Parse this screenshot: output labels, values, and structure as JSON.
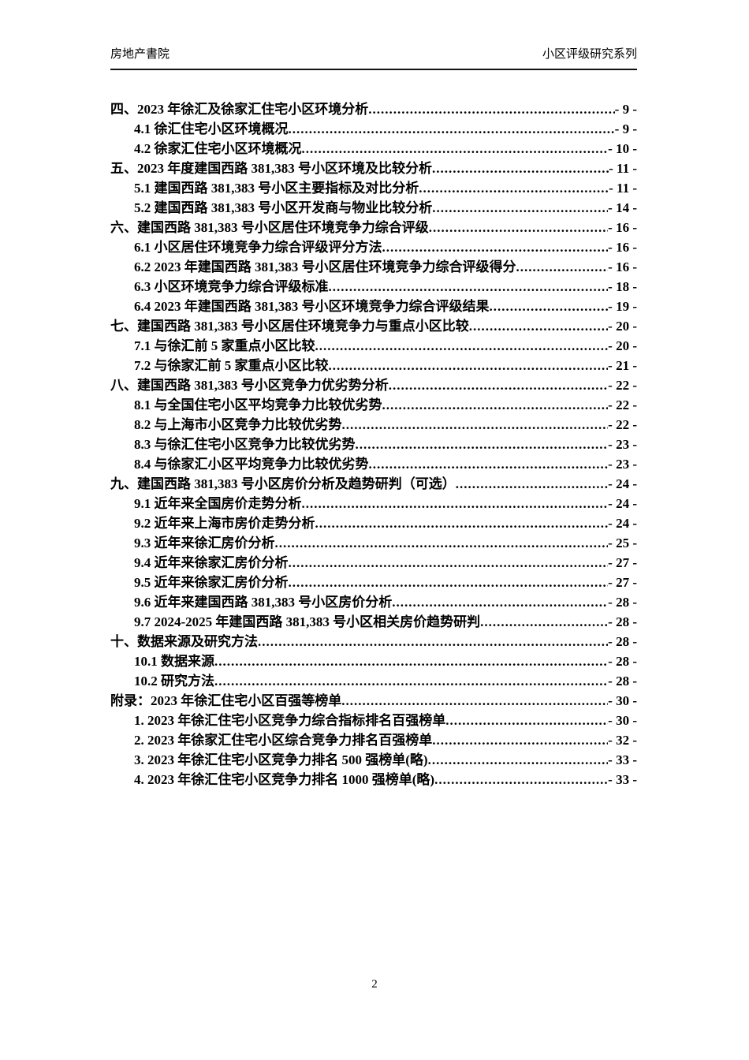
{
  "header": {
    "left_title": "房地产書院",
    "right_title": "小区评级研究系列"
  },
  "footer": {
    "page_number": "2"
  },
  "toc": {
    "items": [
      {
        "level": 0,
        "label": "四、2023 年徐汇及徐家汇住宅小区环境分析",
        "page": "- 9 -"
      },
      {
        "level": 1,
        "label": "4.1 徐汇住宅小区环境概况",
        "page": "- 9 -"
      },
      {
        "level": 1,
        "label": "4.2 徐家汇住宅小区环境概况",
        "page": "- 10 -"
      },
      {
        "level": 0,
        "label": "五、2023 年度建国西路 381,383 号小区环境及比较分析",
        "page": "- 11 -"
      },
      {
        "level": 1,
        "label": "5.1 建国西路 381,383 号小区主要指标及对比分析",
        "page": "- 11 -"
      },
      {
        "level": 1,
        "label": "5.2 建国西路 381,383 号小区开发商与物业比较分析",
        "page": "- 14 -"
      },
      {
        "level": 0,
        "label": "六、建国西路 381,383 号小区居住环境竞争力综合评级",
        "page": "- 16 -"
      },
      {
        "level": 1,
        "label": "6.1 小区居住环境竞争力综合评级评分方法",
        "page": "- 16 -"
      },
      {
        "level": 1,
        "label": "6.2 2023 年建国西路 381,383 号小区居住环境竞争力综合评级得分",
        "page": "- 16 -"
      },
      {
        "level": 1,
        "label": "6.3 小区环境竞争力综合评级标准",
        "page": "- 18 -"
      },
      {
        "level": 1,
        "label": "6.4 2023 年建国西路 381,383 号小区环境竞争力综合评级结果",
        "page": "- 19 -"
      },
      {
        "level": 0,
        "label": "七、建国西路 381,383 号小区居住环境竞争力与重点小区比较",
        "page": "- 20 -"
      },
      {
        "level": 1,
        "label": "7.1 与徐汇前 5 家重点小区比较",
        "page": "- 20 -"
      },
      {
        "level": 1,
        "label": "7.2 与徐家汇前 5 家重点小区比较",
        "page": "- 21 -"
      },
      {
        "level": 0,
        "label": "八、建国西路 381,383 号小区竞争力优劣势分析",
        "page": "- 22 -"
      },
      {
        "level": 1,
        "label": "8.1 与全国住宅小区平均竞争力比较优劣势",
        "page": "- 22 -"
      },
      {
        "level": 1,
        "label": "8.2 与上海市小区竞争力比较优劣势",
        "page": "- 22 -"
      },
      {
        "level": 1,
        "label": "8.3 与徐汇住宅小区竞争力比较优劣势",
        "page": "- 23 -"
      },
      {
        "level": 1,
        "label": "8.4 与徐家汇小区平均竞争力比较优劣势",
        "page": "- 23 -"
      },
      {
        "level": 0,
        "label": "九、建国西路 381,383 号小区房价分析及趋势研判（可选）",
        "page": "- 24 -"
      },
      {
        "level": 1,
        "label": "9.1 近年来全国房价走势分析",
        "page": "- 24 -"
      },
      {
        "level": 1,
        "label": "9.2 近年来上海市房价走势分析",
        "page": "- 24 -"
      },
      {
        "level": 1,
        "label": "9.3 近年来徐汇房价分析",
        "page": "- 25 -"
      },
      {
        "level": 1,
        "label": "9.4 近年来徐家汇房价分析",
        "page": "- 27 -"
      },
      {
        "level": 1,
        "label": "9.5 近年来徐家汇房价分析",
        "page": "- 27 -"
      },
      {
        "level": 1,
        "label": "9.6 近年来建国西路 381,383 号小区房价分析",
        "page": "- 28 -"
      },
      {
        "level": 1,
        "label": "9.7 2024-2025 年建国西路 381,383 号小区相关房价趋势研判",
        "page": "- 28 -"
      },
      {
        "level": 0,
        "label": "十、数据来源及研究方法",
        "page": "- 28 -"
      },
      {
        "level": 1,
        "label": "10.1 数据来源",
        "page": "- 28 -"
      },
      {
        "level": 1,
        "label": "10.2 研究方法",
        "page": "- 28 -"
      },
      {
        "level": 0,
        "label": "附录：2023 年徐汇住宅小区百强等榜单",
        "page": "- 30 -"
      },
      {
        "level": 1,
        "label": "1. 2023 年徐汇住宅小区竞争力综合指标排名百强榜单",
        "page": "- 30 -"
      },
      {
        "level": 1,
        "label": "2. 2023 年徐家汇住宅小区综合竞争力排名百强榜单",
        "page": "- 32 -"
      },
      {
        "level": 1,
        "label": "3. 2023 年徐汇住宅小区竞争力排名 500 强榜单(略)",
        "page": "- 33 -"
      },
      {
        "level": 1,
        "label": "4. 2023 年徐汇住宅小区竞争力排名 1000 强榜单(略)",
        "page": "- 33 -"
      }
    ]
  }
}
